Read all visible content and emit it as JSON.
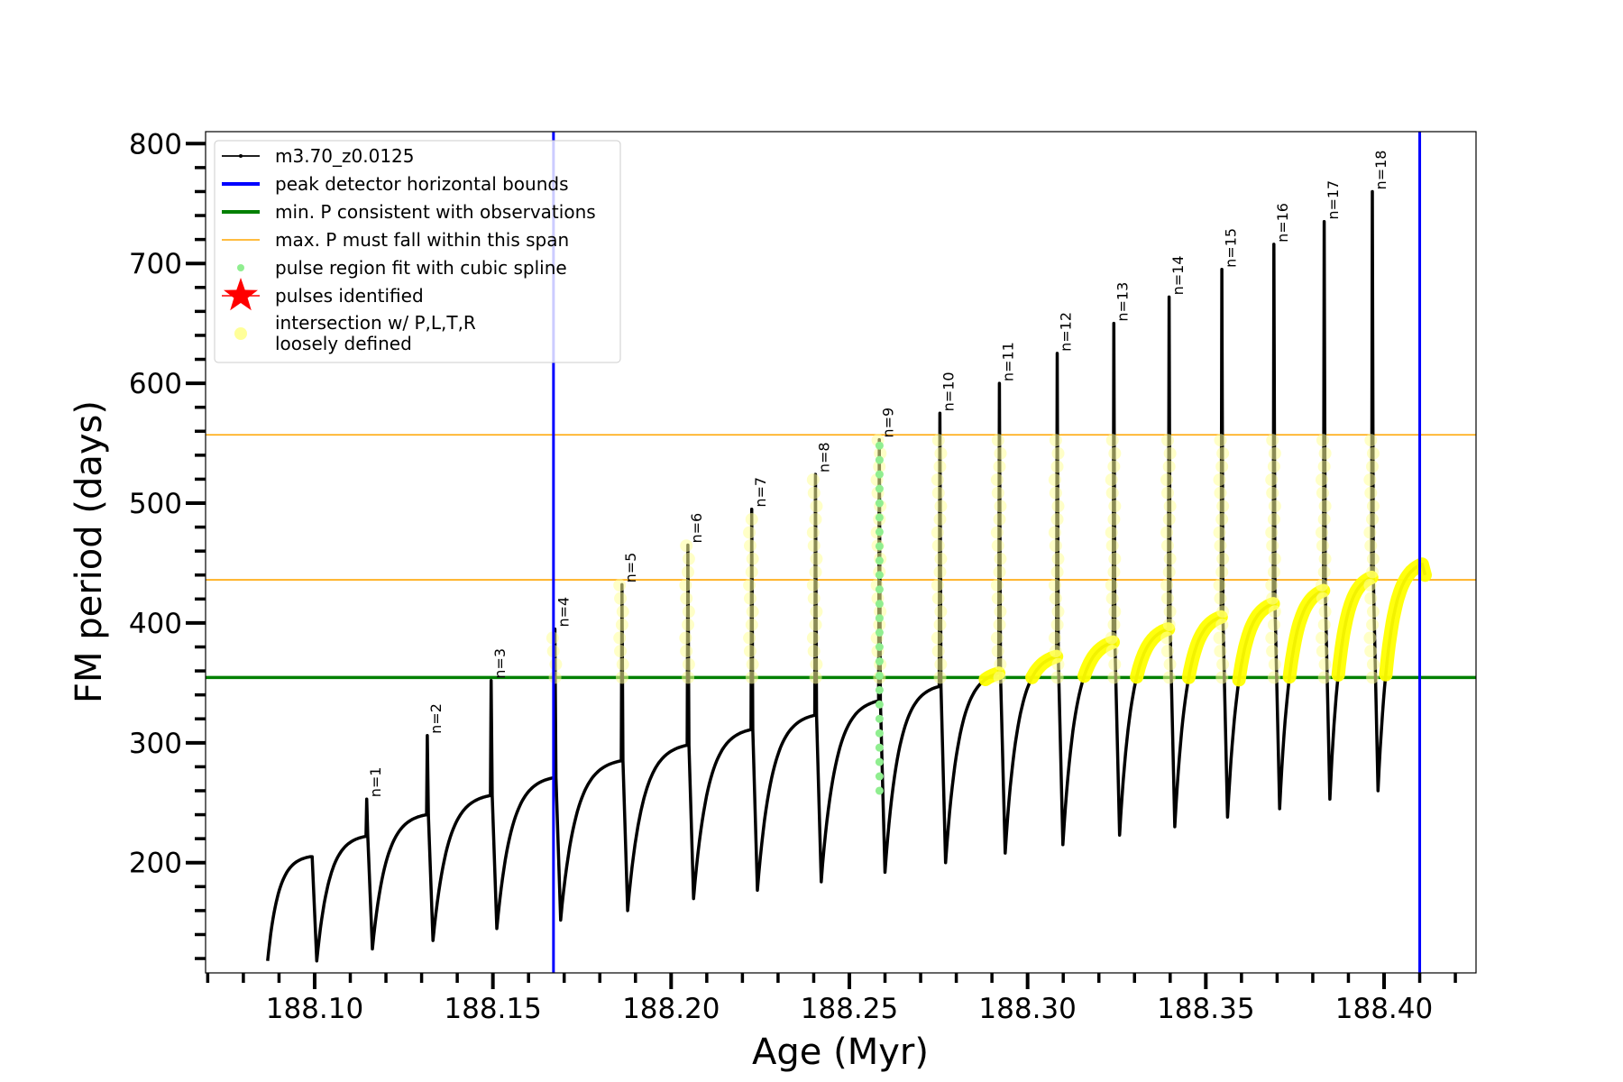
{
  "chart_data": {
    "type": "line",
    "title": "",
    "xlabel": "Age (Myr)",
    "ylabel": "FM period (days)",
    "xlim": [
      188.0694,
      188.4258
    ],
    "ylim": [
      108,
      810
    ],
    "xticks": [
      188.1,
      188.15,
      188.2,
      188.25,
      188.3,
      188.35,
      188.4
    ],
    "xtick_labels": [
      "188.10",
      "188.15",
      "188.20",
      "188.25",
      "188.30",
      "188.35",
      "188.40"
    ],
    "yticks": [
      200,
      300,
      400,
      500,
      600,
      700,
      800
    ],
    "ytick_labels": [
      "200",
      "300",
      "400",
      "500",
      "600",
      "700",
      "800"
    ],
    "grid": false,
    "legend_placement": "top-left",
    "legend": [
      {
        "label": "m3.70_z0.0125",
        "kind": "line-marker",
        "color": "#000000"
      },
      {
        "label": "peak detector horizontal bounds",
        "kind": "thick-line",
        "color": "#0000ff"
      },
      {
        "label": "min. P consistent with observations",
        "kind": "thick-line",
        "color": "#008000"
      },
      {
        "label": "max. P must fall within this span",
        "kind": "thin-line",
        "color": "#ffa500"
      },
      {
        "label": "pulse region fit with cubic spline",
        "kind": "dot",
        "color": "#90ee90"
      },
      {
        "label": "pulses identified",
        "kind": "star",
        "color": "#ff0000"
      },
      {
        "label": "intersection w/ P,L,T,R",
        "label2": "loosely defined",
        "kind": "big-dot",
        "color": "#ffff99"
      }
    ],
    "vertical_lines": {
      "color": "#0000ff",
      "x": [
        188.167,
        188.41
      ]
    },
    "min_period_line": {
      "color": "#008000",
      "y": 354.5
    },
    "max_period_span": {
      "color": "#ffa500",
      "y": [
        436,
        557
      ]
    },
    "track": {
      "name": "m3.70_z0.0125",
      "color": "#000000",
      "start": {
        "age": 188.0868,
        "period": 118
      },
      "end": {
        "age": 188.4115,
        "period": 440,
        "plateau": 449
      },
      "pulses": [
        {
          "n": "",
          "label": "",
          "age": 188.0988,
          "plateau": 205,
          "peak": 205,
          "min": 118
        },
        {
          "n": 1,
          "label": "n=1",
          "age": 188.1144,
          "plateau": 222,
          "peak": 253,
          "min": 128
        },
        {
          "n": 2,
          "label": "n=2",
          "age": 188.1314,
          "plateau": 240,
          "peak": 306,
          "min": 135
        },
        {
          "n": 3,
          "label": "n=3",
          "age": 188.1493,
          "plateau": 256,
          "peak": 352,
          "min": 145
        },
        {
          "n": 4,
          "label": "n=4",
          "age": 188.1672,
          "plateau": 271,
          "peak": 395,
          "min": 152
        },
        {
          "n": 5,
          "label": "n=5",
          "age": 188.186,
          "plateau": 285,
          "peak": 432,
          "min": 160
        },
        {
          "n": 6,
          "label": "n=6",
          "age": 188.2045,
          "plateau": 298,
          "peak": 465,
          "min": 170
        },
        {
          "n": 7,
          "label": "n=7",
          "age": 188.2224,
          "plateau": 311,
          "peak": 495,
          "min": 177
        },
        {
          "n": 8,
          "label": "n=8",
          "age": 188.2403,
          "plateau": 323,
          "peak": 524,
          "min": 184
        },
        {
          "n": 9,
          "label": "n=9",
          "age": 188.2582,
          "plateau": 335,
          "peak": 553,
          "min": 192
        },
        {
          "n": 10,
          "label": "n=10",
          "age": 188.2752,
          "plateau": 347,
          "peak": 575,
          "min": 200
        },
        {
          "n": 11,
          "label": "n=11",
          "age": 188.2919,
          "plateau": 358,
          "peak": 600,
          "min": 208
        },
        {
          "n": 12,
          "label": "n=12",
          "age": 188.3081,
          "plateau": 372,
          "peak": 625,
          "min": 215
        },
        {
          "n": 13,
          "label": "n=13",
          "age": 188.324,
          "plateau": 384,
          "peak": 650,
          "min": 223
        },
        {
          "n": 14,
          "label": "n=14",
          "age": 188.3395,
          "plateau": 395,
          "peak": 672,
          "min": 230
        },
        {
          "n": 15,
          "label": "n=15",
          "age": 188.3543,
          "plateau": 405,
          "peak": 695,
          "min": 238
        },
        {
          "n": 16,
          "label": "n=16",
          "age": 188.3689,
          "plateau": 416,
          "peak": 716,
          "min": 245
        },
        {
          "n": 17,
          "label": "n=17",
          "age": 188.383,
          "plateau": 427,
          "peak": 735,
          "min": 253
        },
        {
          "n": 18,
          "label": "n=18",
          "age": 188.3965,
          "plateau": 438,
          "peak": 760,
          "min": 260
        }
      ]
    },
    "spline_fit_pulse": {
      "n": 9,
      "color": "#90ee90",
      "range": [
        260,
        553
      ]
    },
    "intersection_color": "#ffff00",
    "loose_intersection_color": "#ffff99"
  }
}
